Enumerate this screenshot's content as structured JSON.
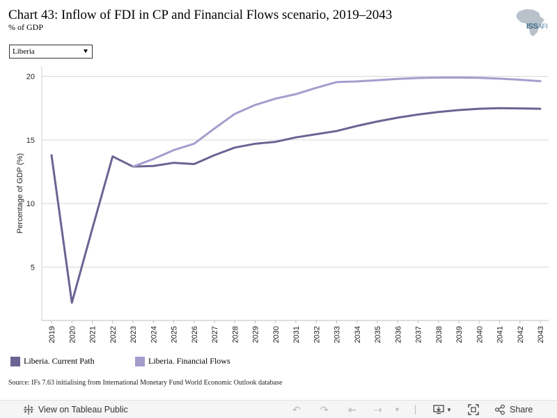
{
  "header": {
    "title": "Chart 43: Inflow of FDI in CP and Financial Flows scenario, 2019–2043",
    "subtitle": "% of GDP"
  },
  "logo": {
    "name": "africa-map-logo",
    "text_main": "ISS",
    "text_sub": "AFI"
  },
  "filter": {
    "selected": "Liberia"
  },
  "chart_data": {
    "type": "line",
    "title": "",
    "xlabel": "",
    "ylabel": "Percentage of GDP (%)",
    "x": [
      "2019",
      "2020",
      "2021",
      "2022",
      "2023",
      "2024",
      "2025",
      "2026",
      "2027",
      "2028",
      "2029",
      "2030",
      "2031",
      "2032",
      "2033",
      "2034",
      "2035",
      "2036",
      "2037",
      "2038",
      "2039",
      "2040",
      "2041",
      "2042",
      "2043"
    ],
    "ylim": [
      0.8,
      20.8
    ],
    "yticks": [
      5,
      10,
      15,
      20
    ],
    "grid": true,
    "series": [
      {
        "name": "Liberia. Current Path",
        "color": "#6c6392",
        "values": [
          13.8,
          2.2,
          8.0,
          13.7,
          12.9,
          12.95,
          13.2,
          13.1,
          13.8,
          14.4,
          14.7,
          14.85,
          15.2,
          15.45,
          15.7,
          16.1,
          16.45,
          16.75,
          17.0,
          17.2,
          17.35,
          17.45,
          17.5,
          17.48,
          17.45
        ]
      },
      {
        "name": "Liberia. Financial Flows",
        "color": "#a49dcc",
        "values": [
          null,
          null,
          null,
          null,
          12.9,
          13.5,
          14.2,
          14.7,
          15.9,
          17.05,
          17.75,
          18.25,
          18.6,
          19.1,
          19.55,
          19.6,
          19.7,
          19.8,
          19.87,
          19.9,
          19.9,
          19.88,
          19.82,
          19.73,
          19.62
        ]
      }
    ],
    "legend_placement": "bottom-left"
  },
  "source": "Source: IFs 7.63 initialising from International Monetary Fund World Economic Outlook database",
  "toolbar": {
    "view_label": "View on Tableau Public",
    "share_label": "Share"
  }
}
